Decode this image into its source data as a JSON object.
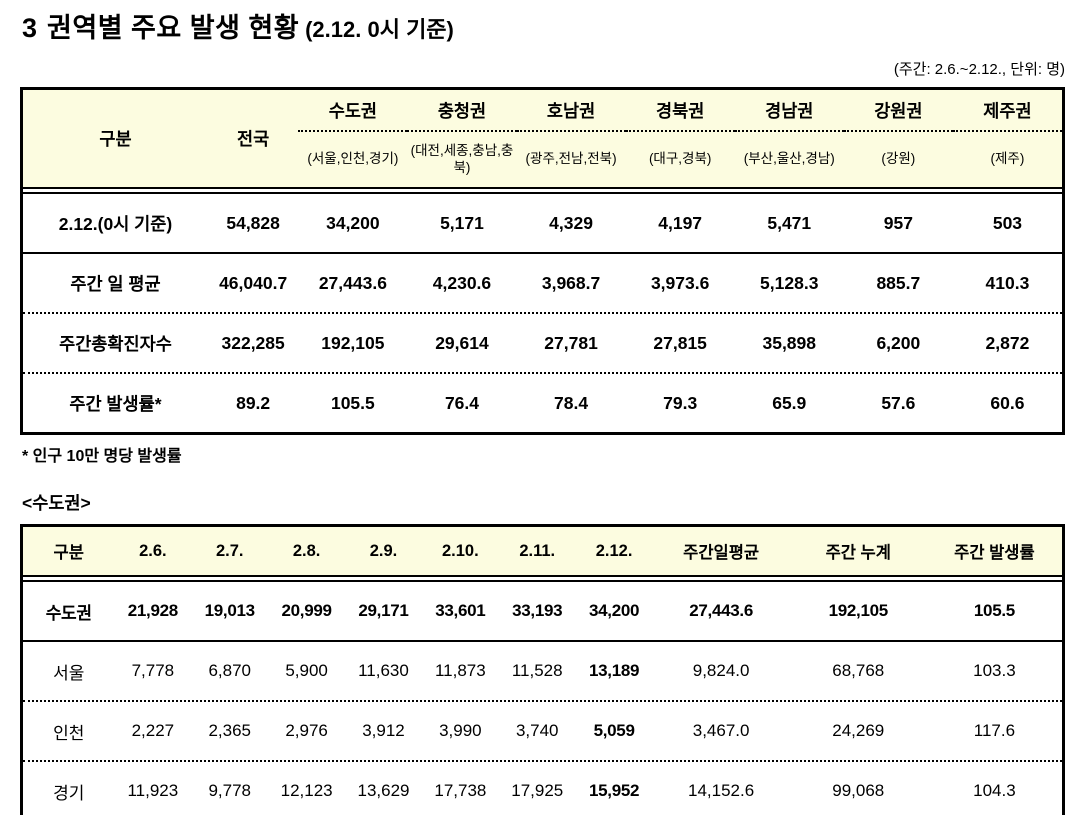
{
  "title": {
    "prefix": "3",
    "main": "권역별 주요 발생 현황",
    "suffix": "(2.12. 0시 기준)"
  },
  "unit_note": "(주간: 2.6.~2.12., 단위: 명)",
  "regional_table": {
    "corner_label": "구분",
    "national_label": "전국",
    "regions": [
      {
        "name": "수도권",
        "sub": "(서울,인천,경기)"
      },
      {
        "name": "충청권",
        "sub": "(대전,세종,충남,충북)"
      },
      {
        "name": "호남권",
        "sub": "(광주,전남,전북)"
      },
      {
        "name": "경북권",
        "sub": "(대구,경북)"
      },
      {
        "name": "경남권",
        "sub": "(부산,울산,경남)"
      },
      {
        "name": "강원권",
        "sub": "(강원)"
      },
      {
        "name": "제주권",
        "sub": "(제주)"
      }
    ],
    "rows": [
      {
        "label": "2.12.(0시 기준)",
        "values": [
          "54,828",
          "34,200",
          "5,171",
          "4,329",
          "4,197",
          "5,471",
          "957",
          "503"
        ]
      },
      {
        "label": "주간 일 평균",
        "values": [
          "46,040.7",
          "27,443.6",
          "4,230.6",
          "3,968.7",
          "3,973.6",
          "5,128.3",
          "885.7",
          "410.3"
        ]
      },
      {
        "label": "주간총확진자수",
        "values": [
          "322,285",
          "192,105",
          "29,614",
          "27,781",
          "27,815",
          "35,898",
          "6,200",
          "2,872"
        ]
      },
      {
        "label": "주간 발생률*",
        "values": [
          "89.2",
          "105.5",
          "76.4",
          "78.4",
          "79.3",
          "65.9",
          "57.6",
          "60.6"
        ]
      }
    ]
  },
  "footnote": "* 인구 10만 명당 발생률",
  "capital_table": {
    "section_title": "<수도권>",
    "headers": [
      "구분",
      "2.6.",
      "2.7.",
      "2.8.",
      "2.9.",
      "2.10.",
      "2.11.",
      "2.12.",
      "주간일평균",
      "주간 누계",
      "주간 발생률"
    ],
    "rows": [
      {
        "label": "수도권",
        "values": [
          "21,928",
          "19,013",
          "20,999",
          "29,171",
          "33,601",
          "33,193",
          "34,200",
          "27,443.6",
          "192,105",
          "105.5"
        ]
      },
      {
        "label": "서울",
        "values": [
          "7,778",
          "6,870",
          "5,900",
          "11,630",
          "11,873",
          "11,528",
          "13,189",
          "9,824.0",
          "68,768",
          "103.3"
        ]
      },
      {
        "label": "인천",
        "values": [
          "2,227",
          "2,365",
          "2,976",
          "3,912",
          "3,990",
          "3,740",
          "5,059",
          "3,467.0",
          "24,269",
          "117.6"
        ]
      },
      {
        "label": "경기",
        "values": [
          "11,923",
          "9,778",
          "12,123",
          "13,629",
          "17,738",
          "17,925",
          "15,952",
          "14,152.6",
          "99,068",
          "104.3"
        ]
      }
    ]
  },
  "colors": {
    "header_bg": "#FCFCE0",
    "border": "#000000"
  }
}
